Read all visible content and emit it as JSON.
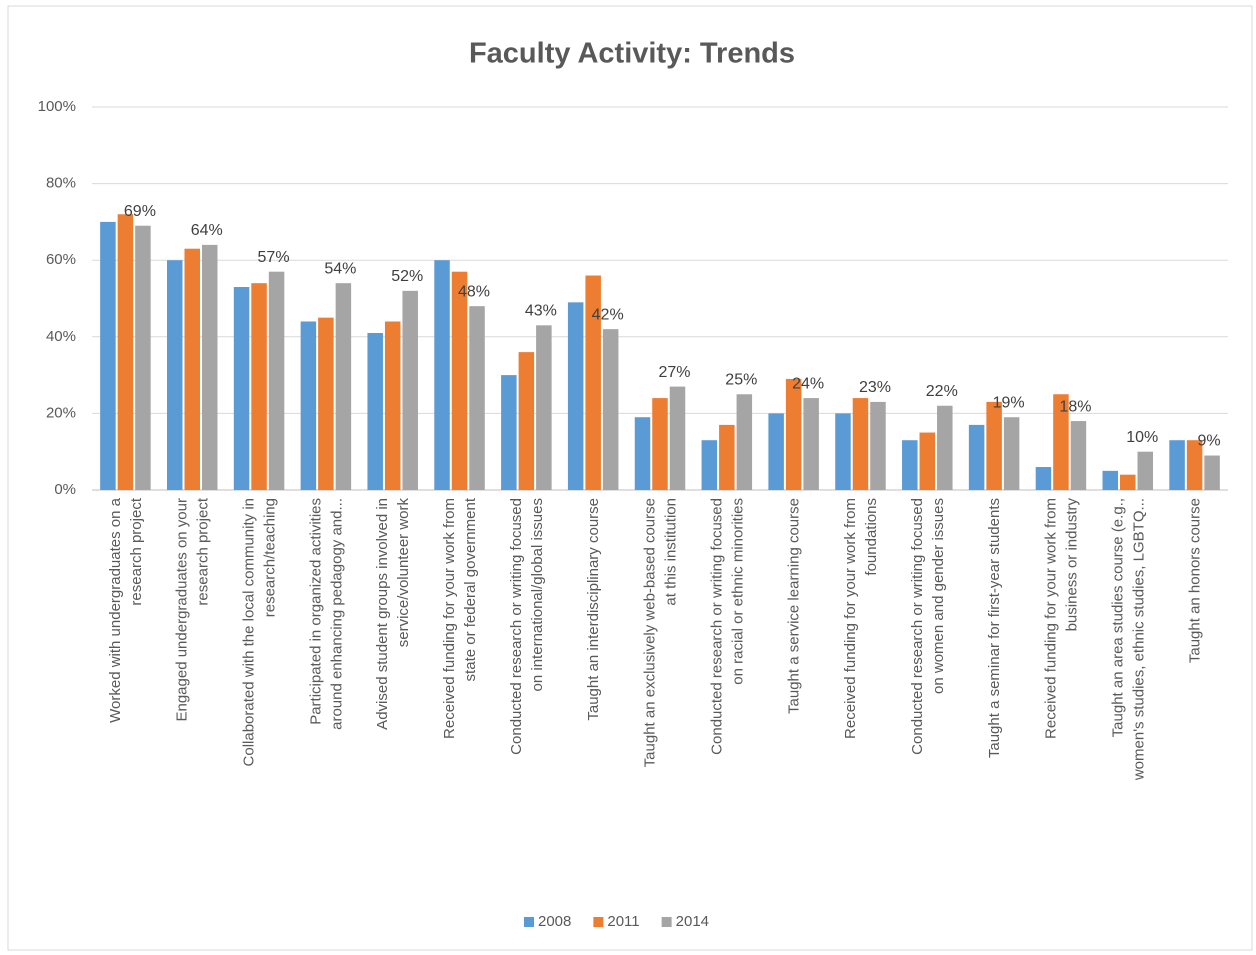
{
  "chart_data": {
    "type": "bar",
    "title": "Faculty Activity: Trends",
    "categories": [
      "Worked with undergraduates on a\nresearch project",
      "Engaged undergraduates on your\nresearch project",
      "Collaborated with the local community in\nresearch/teaching",
      "Participated in organized activities\naround enhancing pedagogy and...",
      "Advised student groups involved in\nservice/volunteer work",
      "Received funding for your work from\nstate or federal government",
      "Conducted research or writing focused\non international/global issues",
      "Taught an interdisciplinary course",
      "Taught an exclusively web-based course\nat this institution",
      "Conducted research or writing focused\non racial or ethnic minorities",
      "Taught a service learning course",
      "Received funding for your work from\nfoundations",
      "Conducted research or writing focused\non women and gender issues",
      "Taught a seminar for first-year students",
      "Received funding for your work from\nbusiness or industry",
      "Taught an area studies course (e.g.,\nwomen's studies, ethnic studies, LGBTQ...",
      "Taught an honors course"
    ],
    "series": [
      {
        "name": "2008",
        "color": "#5b9bd5",
        "values": [
          70,
          60,
          53,
          44,
          41,
          60,
          30,
          49,
          19,
          13,
          20,
          20,
          13,
          17,
          6,
          5,
          13
        ]
      },
      {
        "name": "2011",
        "color": "#ed7d31",
        "values": [
          72,
          63,
          54,
          45,
          44,
          57,
          36,
          56,
          24,
          17,
          29,
          24,
          15,
          23,
          25,
          4,
          13
        ]
      },
      {
        "name": "2014",
        "color": "#a5a5a5",
        "values": [
          69,
          64,
          57,
          54,
          52,
          48,
          43,
          42,
          27,
          25,
          24,
          23,
          22,
          19,
          18,
          10,
          9
        ],
        "value_labels": [
          "69%",
          "64%",
          "57%",
          "54%",
          "52%",
          "48%",
          "43%",
          "42%",
          "27%",
          "25%",
          "24%",
          "23%",
          "22%",
          "19%",
          "18%",
          "10%",
          "9%"
        ]
      }
    ],
    "ylim": [
      0,
      100
    ],
    "yticks": [
      {
        "value": 0,
        "label": "0%"
      },
      {
        "value": 20,
        "label": "20%"
      },
      {
        "value": 40,
        "label": "40%"
      },
      {
        "value": 60,
        "label": "60%"
      },
      {
        "value": 80,
        "label": "80%"
      },
      {
        "value": 100,
        "label": "100%"
      }
    ],
    "grid": true,
    "legend": "bottom"
  }
}
